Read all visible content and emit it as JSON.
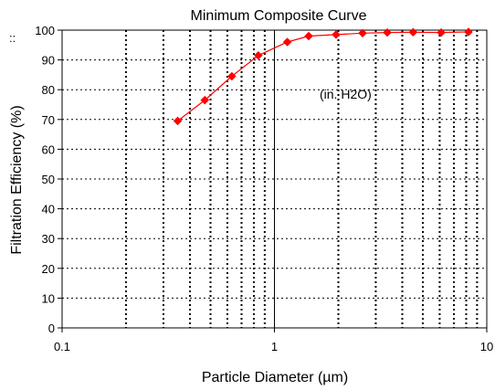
{
  "chart_data": {
    "type": "scatter",
    "title": "Minimum Composite Curve",
    "xlabel": "Particle Diameter (µm)",
    "ylabel": "Filtration Efficiency (%)",
    "x_scale": "log",
    "xlim": [
      0.1,
      10
    ],
    "ylim": [
      0,
      100
    ],
    "x_tick_labels": [
      "0.1",
      "1",
      "10"
    ],
    "y_tick_labels": [
      "0",
      "10",
      "20",
      "30",
      "40",
      "50",
      "60",
      "70",
      "80",
      "90",
      "100"
    ],
    "grid": true,
    "annotation": "(in. H2O)",
    "corner_mark": "::",
    "series": [
      {
        "color": "#ff0000",
        "marker": "diamond",
        "x": [
          0.35,
          0.47,
          0.63,
          0.84,
          1.15,
          1.45,
          1.95,
          2.6,
          3.4,
          4.5,
          6.1,
          8.2
        ],
        "y": [
          69.5,
          76.5,
          84.5,
          91.5,
          96.0,
          98.0,
          98.5,
          99.0,
          99.2,
          99.3,
          99.2,
          99.4
        ]
      }
    ]
  }
}
